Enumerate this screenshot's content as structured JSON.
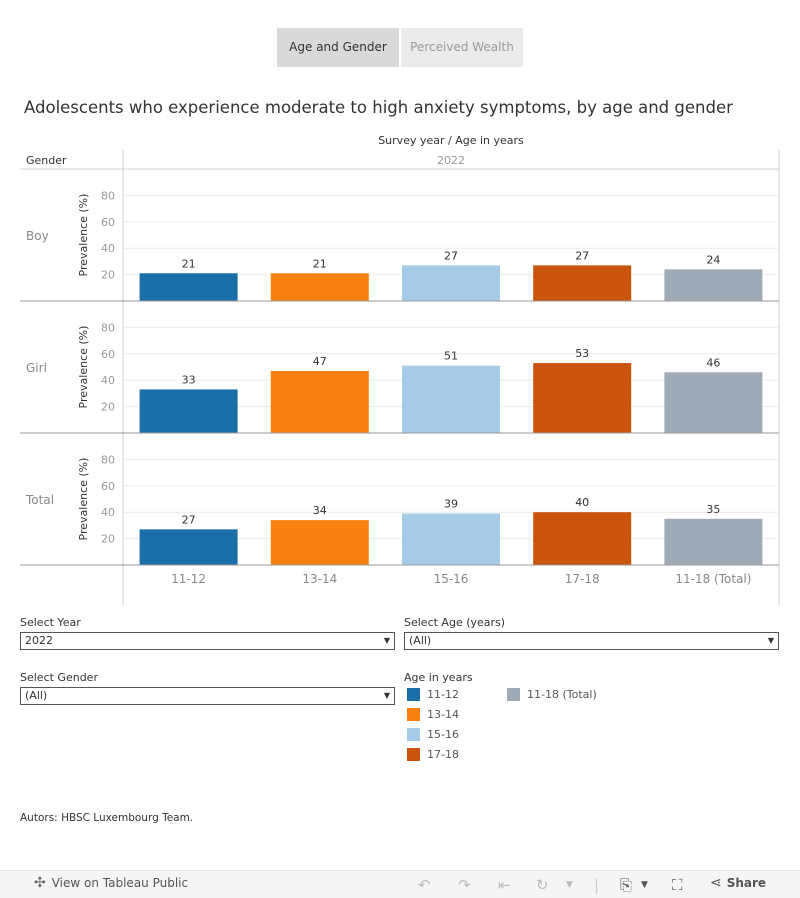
{
  "tabs": [
    {
      "label": "Age and Gender"
    },
    {
      "label": "Perceived Wealth"
    }
  ],
  "title": "Adolescents who experience moderate to high anxiety symptoms, by age and gender",
  "chart_data": {
    "type": "bar",
    "column_header": "Survey year  /  Age in years",
    "row_header": "Gender",
    "year": "2022",
    "ylabel": "Prevalence (%)",
    "yticks": [
      20,
      40,
      60,
      80
    ],
    "ylim": [
      0,
      100
    ],
    "categories": [
      "11-12",
      "13-14",
      "15-16",
      "17-18",
      "11-18 (Total)"
    ],
    "colors": [
      "#1a6fa8",
      "#f8800f",
      "#a6cbe6",
      "#c9550d",
      "#a0aab6"
    ],
    "rows": [
      {
        "name": "Boy",
        "values": [
          21,
          21,
          27,
          27,
          24
        ]
      },
      {
        "name": "Girl",
        "values": [
          33,
          47,
          51,
          53,
          46
        ]
      },
      {
        "name": "Total",
        "values": [
          27,
          34,
          39,
          40,
          35
        ]
      }
    ]
  },
  "filters": {
    "year": {
      "label": "Select Year",
      "value": "2022"
    },
    "age": {
      "label": "Select Age (years)",
      "value": "(All)"
    },
    "gender": {
      "label": "Select Gender",
      "value": "(All)"
    }
  },
  "legend": {
    "title": "Age in years",
    "items": [
      {
        "label": "11-12",
        "color": "#1a6fa8"
      },
      {
        "label": "13-14",
        "color": "#f8800f"
      },
      {
        "label": "15-16",
        "color": "#a6cbe6"
      },
      {
        "label": "17-18",
        "color": "#c9550d"
      },
      {
        "label": "11-18 (Total)",
        "color": "#a0aab6"
      }
    ]
  },
  "authors": {
    "prefix": "Autors:",
    "text": "HBSC Luxembourg Team."
  },
  "footer": {
    "view_label": "View on Tableau Public",
    "share_label": "Share"
  }
}
